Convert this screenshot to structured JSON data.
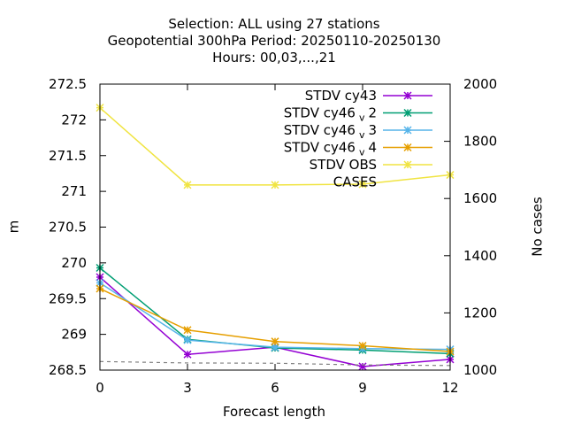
{
  "chart_data": {
    "type": "line",
    "title_lines": [
      "Selection: ALL using    27 stations",
      "Geopotential 300hPa   Period: 20250110-20250130",
      "Hours:  00,03,...,21"
    ],
    "xlabel": "Forecast length",
    "ylabel": "m",
    "y2label": "No cases",
    "x": [
      0,
      3,
      6,
      9,
      12
    ],
    "xlim": [
      0,
      12
    ],
    "ylim": [
      268.5,
      272.5
    ],
    "y2lim": [
      1000,
      2000
    ],
    "xticks": [
      0,
      3,
      6,
      9,
      12
    ],
    "yticks": [
      268.5,
      269,
      269.5,
      270,
      270.5,
      271,
      271.5,
      272,
      272.5
    ],
    "y2ticks": [
      1000,
      1200,
      1400,
      1600,
      1800,
      2000
    ],
    "grid": false,
    "legend_position": "top-right",
    "series": [
      {
        "name": "STDV cy43",
        "name_base": "STDV cy43",
        "name_sub": "",
        "name_suffix": "",
        "axis": "y1",
        "color": "#9400d3",
        "marker": "x",
        "dash": "",
        "values": [
          269.8,
          268.72,
          268.82,
          268.55,
          268.65
        ]
      },
      {
        "name": "STDV cy46_v 2",
        "name_base": "STDV cy46",
        "name_sub": "v",
        "name_suffix": "2",
        "axis": "y1",
        "color": "#009e73",
        "marker": "x",
        "dash": "",
        "values": [
          269.93,
          268.93,
          268.81,
          268.78,
          268.73
        ]
      },
      {
        "name": "STDV cy46_v 3",
        "name_base": "STDV cy46",
        "name_sub": "v",
        "name_suffix": "3",
        "axis": "y1",
        "color": "#56b4e9",
        "marker": "x",
        "dash": "",
        "values": [
          269.72,
          268.92,
          268.82,
          268.8,
          268.79
        ]
      },
      {
        "name": "STDV cy46_v 4",
        "name_base": "STDV cy46",
        "name_sub": "v",
        "name_suffix": "4",
        "axis": "y1",
        "color": "#e69f00",
        "marker": "x",
        "dash": "",
        "values": [
          269.64,
          269.06,
          268.9,
          268.84,
          268.76
        ]
      },
      {
        "name": "STDV OBS",
        "name_base": "STDV OBS",
        "name_sub": "",
        "name_suffix": "",
        "axis": "y1",
        "color": "#f0e442",
        "marker": "x",
        "dash": "",
        "values": [
          272.17,
          271.09,
          271.09,
          271.1,
          271.23
        ]
      },
      {
        "name": "CASES",
        "name_base": "CASES",
        "name_sub": "",
        "name_suffix": "",
        "axis": "y2",
        "color": "#808080",
        "marker": "",
        "dash": "4,4",
        "values": [
          1030,
          1025,
          1024,
          1018,
          1016
        ]
      }
    ]
  }
}
